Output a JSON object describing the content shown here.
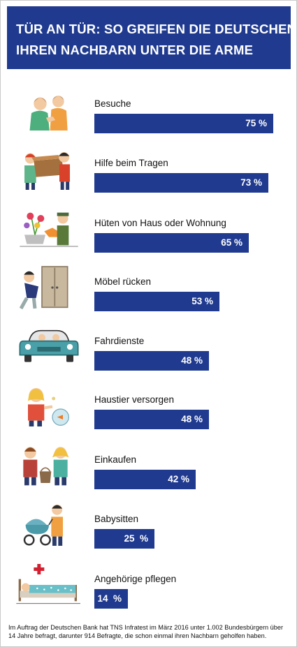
{
  "title_line1": "TÜR AN TÜR: SO GREIFEN DIE DEUTSCHEN",
  "title_line2": "IHREN NACHBARN UNTER DIE ARME",
  "footer": "Im Auftrag der Deutschen Bank hat TNS Infratest im März 2016 unter 1.002 Bundesbürgern über 14 Jahre befragt, darunter 914 Befragte, die schon einmal ihren Nachbarn geholfen haben.",
  "colors": {
    "bar": "#1f3a8f",
    "header": "#1f3a8f"
  },
  "chart_data": {
    "type": "bar",
    "orientation": "horizontal",
    "categories": [
      "Besuche",
      "Hilfe beim Tragen",
      "Hüten von Haus oder Wohnung",
      "Möbel rücken",
      "Fahrdienste",
      "Haustier versorgen",
      "Einkaufen",
      "Babysitten",
      "Angehörige pflegen"
    ],
    "values": [
      75,
      73,
      65,
      53,
      48,
      48,
      42,
      25,
      14
    ],
    "value_labels": [
      "75 %",
      "73 %",
      "65 %",
      "53 %",
      "48 %",
      "48 %",
      "42 %",
      "25  %",
      "14  %"
    ],
    "unit": "%",
    "icons": [
      "handshake-icon",
      "carrying-box-icon",
      "watering-plants-icon",
      "moving-furniture-icon",
      "car-ride-icon",
      "pet-care-icon",
      "shopping-icon",
      "babysitting-icon",
      "caregiving-icon"
    ]
  }
}
